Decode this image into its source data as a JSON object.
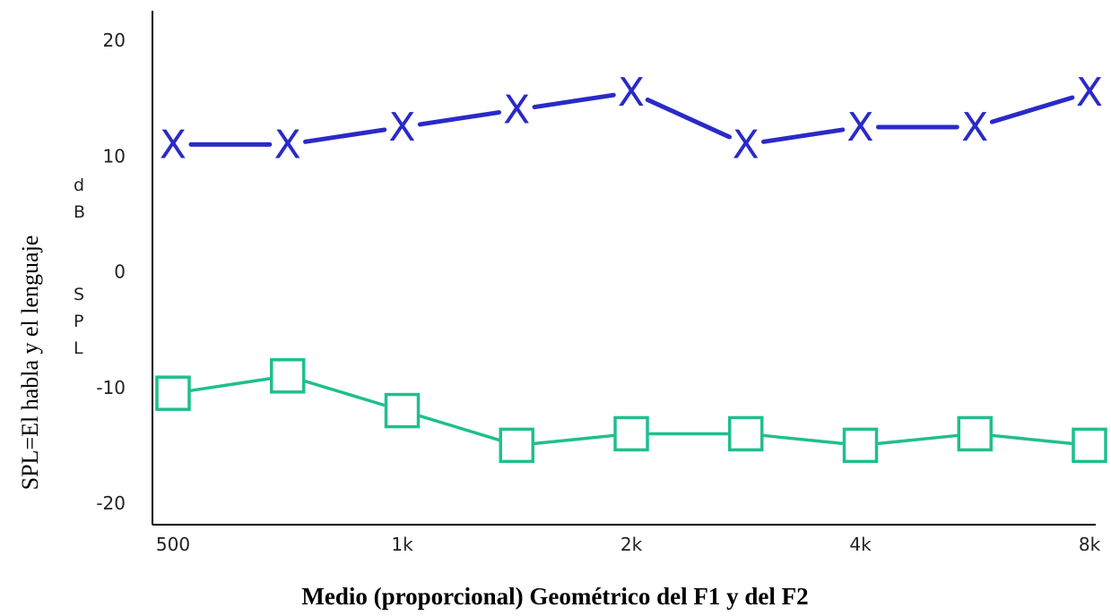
{
  "chart_data": {
    "type": "line",
    "side_label": "SPL=El habla y el lenguaje",
    "ylabel_letters": [
      "d",
      "B",
      "S",
      "P",
      "L"
    ],
    "xlabel": "Medio (proporcional) Geométrico del F1 y del F2",
    "ylim": [
      -20,
      20
    ],
    "y_ticks": [
      20,
      10,
      0,
      -10,
      -20
    ],
    "x_positions": [
      0,
      1,
      2,
      3,
      4,
      5,
      6,
      7,
      8
    ],
    "x_tick_labels": [
      {
        "index": 0,
        "label": "500"
      },
      {
        "index": 2,
        "label": "1k"
      },
      {
        "index": 4,
        "label": "2k"
      },
      {
        "index": 6,
        "label": "4k"
      },
      {
        "index": 8,
        "label": "8k"
      }
    ],
    "grid": false,
    "series": [
      {
        "marker": "x",
        "color": "#2a2ac8",
        "values": [
          11,
          11,
          12.5,
          14,
          15.5,
          11,
          12.5,
          12.5,
          15.5
        ]
      },
      {
        "marker": "square",
        "color": "#1fbf8f",
        "values": [
          -10.5,
          -9,
          -12,
          -15,
          -14,
          -14,
          -15,
          -14,
          -15
        ]
      }
    ]
  }
}
